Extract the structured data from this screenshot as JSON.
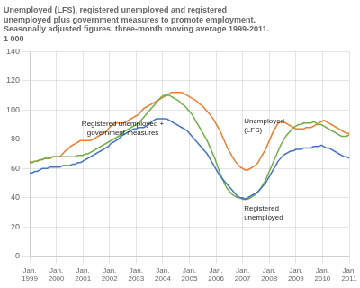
{
  "chart_data": {
    "type": "line",
    "title": "Unemployed (LFS), registered unemployed and registered\nunemployed plus government measures to promote employment.\nSeasonally adjusted figures, three-month moving average 1999-2011.\n1 000",
    "x": [
      0,
      0.0952,
      0.1905,
      0.2857,
      0.381,
      0.4762,
      0.5714,
      0.6667,
      0.7619,
      0.8571,
      0.9524,
      1.0476,
      1.1429,
      1.2381,
      1.3333,
      1.4286,
      1.5238,
      1.619,
      1.7143,
      1.8095,
      1.9048,
      2,
      2.0952,
      2.1905,
      2.2857,
      2.381,
      2.4762,
      2.5714,
      2.6667,
      2.7619,
      2.8571,
      2.9524,
      3.0476,
      3.1429,
      3.2381,
      3.3333,
      3.4286,
      3.5238,
      3.619,
      3.7143,
      3.8095,
      3.9048,
      4,
      4.0952,
      4.1905,
      4.2857,
      4.381,
      4.4762,
      4.5714,
      4.6667,
      4.7619,
      4.8571,
      4.9524,
      5.0476,
      5.1429,
      5.2381,
      5.3333,
      5.4286,
      5.5238,
      5.619,
      5.7143,
      5.8095,
      5.9048,
      6,
      6.0952,
      6.1905,
      6.2857,
      6.381,
      6.4762,
      6.5714,
      6.6667,
      6.7619,
      6.8571,
      6.9524,
      7.0476,
      7.1429,
      7.2381,
      7.3333,
      7.4286,
      7.5238,
      7.619,
      7.7143,
      7.8095,
      7.9048,
      8,
      8.0952,
      8.1905,
      8.2857,
      8.381,
      8.4762,
      8.5714,
      8.6667,
      8.7619,
      8.8571,
      8.9524,
      9.0476,
      9.1429,
      9.2381,
      9.3333,
      9.4286,
      9.5238,
      9.619,
      9.7143,
      9.8095,
      9.9048,
      10,
      10.0952,
      10.1905,
      10.2857,
      10.381,
      10.4762,
      10.5714,
      10.6667,
      10.7619,
      10.8571,
      10.9524,
      11.0476,
      11.1429,
      11.2381,
      11.3333,
      11.4286,
      11.5238,
      11.619,
      11.7143,
      11.8095,
      11.9048,
      12
    ],
    "xlim": [
      0,
      12
    ],
    "xticks": [
      {
        "value": 0,
        "label": "Jan.\n1999"
      },
      {
        "value": 1,
        "label": "Jan.\n2000"
      },
      {
        "value": 2,
        "label": "Jan.\n2001"
      },
      {
        "value": 3,
        "label": "Jan.\n2002"
      },
      {
        "value": 4,
        "label": "Jan.\n2003"
      },
      {
        "value": 5,
        "label": "Jan.\n2004"
      },
      {
        "value": 6,
        "label": "Jan.\n2005"
      },
      {
        "value": 7,
        "label": "Jan.\n2006"
      },
      {
        "value": 8,
        "label": "Jan.\n2007"
      },
      {
        "value": 9,
        "label": "Jan.\n2008"
      },
      {
        "value": 10,
        "label": "Jan.\n2009"
      },
      {
        "value": 11,
        "label": "Jan.\n2010"
      },
      {
        "value": 12,
        "label": "Jan.\n2011"
      }
    ],
    "ylim": [
      0,
      140
    ],
    "yticks": [
      0,
      20,
      40,
      60,
      80,
      100,
      120,
      140
    ],
    "grid": true,
    "series": [
      {
        "color": "#4472c4",
        "values": [
          57,
          57,
          58,
          58,
          59,
          60,
          60,
          60,
          61,
          61,
          61,
          61,
          61,
          62,
          62,
          62,
          62,
          63,
          63,
          64,
          64,
          65,
          66,
          67,
          68,
          69,
          70,
          71,
          72,
          73,
          74,
          75,
          77,
          78,
          79,
          80,
          82,
          83,
          84,
          85,
          86,
          87,
          87,
          88,
          88,
          88,
          89,
          90,
          92,
          93,
          94,
          94,
          94,
          94,
          94,
          93,
          92,
          91,
          90,
          89,
          88,
          87,
          86,
          84,
          82,
          80,
          78,
          76,
          74,
          72,
          70,
          67,
          64,
          61,
          58,
          55,
          53,
          51,
          49,
          47,
          45,
          43,
          41,
          40,
          40,
          39,
          40,
          41,
          42,
          43,
          44,
          46,
          48,
          50,
          53,
          56,
          59,
          62,
          65,
          67,
          69,
          70,
          71,
          72,
          72,
          73,
          73,
          73,
          74,
          74,
          74,
          74,
          75,
          75,
          75,
          76,
          75,
          74,
          74,
          73,
          72,
          71,
          70,
          69,
          68,
          68,
          67
        ]
      },
      {
        "color": "#70ad47",
        "values": [
          64,
          64,
          65,
          65,
          66,
          66,
          67,
          67,
          67,
          68,
          68,
          68,
          68,
          68,
          68,
          68,
          68,
          68,
          68,
          69,
          69,
          69,
          70,
          70,
          71,
          72,
          73,
          74,
          75,
          76,
          77,
          78,
          79,
          80,
          81,
          82,
          83,
          85,
          86,
          87,
          88,
          89,
          90,
          91,
          93,
          95,
          97,
          99,
          101,
          103,
          105,
          107,
          109,
          110,
          110,
          110,
          109,
          108,
          107,
          106,
          104,
          103,
          101,
          99,
          97,
          94,
          91,
          88,
          85,
          82,
          79,
          75,
          71,
          67,
          62,
          57,
          53,
          49,
          46,
          44,
          42,
          41,
          40,
          40,
          39,
          39,
          39,
          40,
          41,
          42,
          44,
          46,
          49,
          52,
          56,
          60,
          64,
          68,
          72,
          76,
          79,
          82,
          84,
          86,
          88,
          89,
          90,
          90,
          91,
          91,
          91,
          91,
          92,
          91,
          90,
          90,
          89,
          88,
          87,
          86,
          85,
          84,
          83,
          82,
          82,
          82,
          83
        ]
      },
      {
        "color": "#ed7d31",
        "values": [
          65,
          64,
          65,
          65,
          66,
          66,
          67,
          67,
          67,
          68,
          68,
          68,
          68,
          70,
          72,
          73,
          75,
          76,
          77,
          78,
          79,
          79,
          79,
          79,
          79,
          80,
          81,
          82,
          83,
          84,
          85,
          87,
          89,
          90,
          91,
          91,
          91,
          91,
          92,
          93,
          94,
          95,
          96,
          97,
          99,
          101,
          102,
          103,
          104,
          105,
          106,
          107,
          108,
          109,
          110,
          111,
          112,
          112,
          112,
          112,
          112,
          111,
          110,
          109,
          108,
          107,
          106,
          104,
          103,
          101,
          99,
          97,
          95,
          92,
          89,
          86,
          82,
          78,
          74,
          71,
          68,
          65,
          63,
          61,
          60,
          59,
          59,
          60,
          61,
          62,
          64,
          67,
          70,
          73,
          77,
          81,
          85,
          88,
          91,
          92,
          92,
          91,
          90,
          89,
          88,
          87,
          87,
          87,
          87,
          88,
          88,
          88,
          89,
          90,
          91,
          92,
          93,
          92,
          91,
          90,
          89,
          88,
          87,
          86,
          85,
          84,
          84
        ]
      }
    ],
    "annotations": [
      {
        "text": "Registered unemployed +\ngovernment measures",
        "x": 3.5,
        "y": 82
      },
      {
        "text": "Unemployed\n(LFS)",
        "x": 8.05,
        "y": 89
      },
      {
        "text": "Registered\nunemployed",
        "x": 8.05,
        "y": 35
      }
    ]
  }
}
